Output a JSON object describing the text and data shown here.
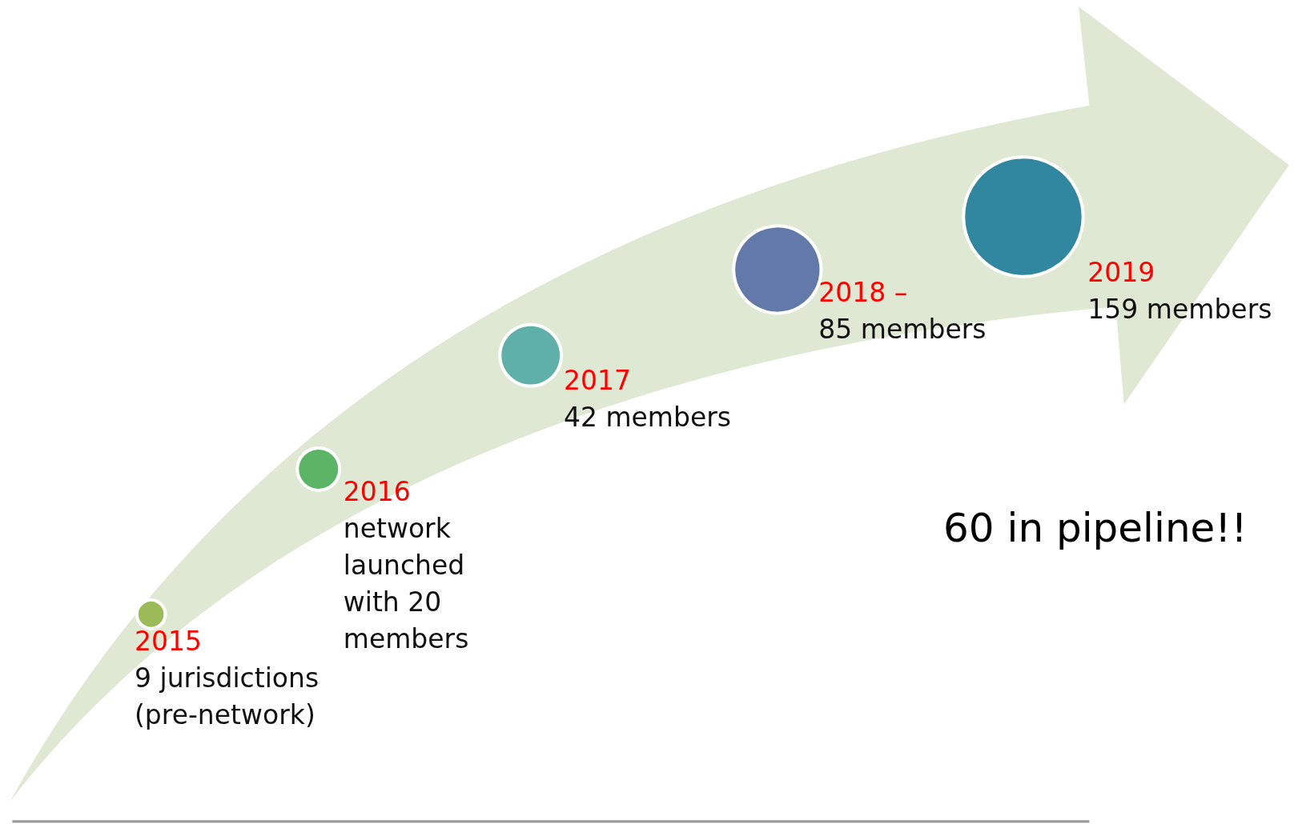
{
  "chart_data": {
    "type": "other",
    "categories": [
      "2015",
      "2016",
      "2017",
      "2018 –",
      "2019"
    ],
    "values": [
      9,
      20,
      42,
      85,
      159
    ],
    "value_labels": [
      "\n9 jurisdictions\n(pre-network)",
      "\nnetwork\nlaunched\nwith 20\nmembers",
      "\n42 members",
      "\n85 members",
      "\n159 members"
    ],
    "colors": [
      "#9bbb59",
      "#5cb567",
      "#5fb0a8",
      "#6279a9",
      "#31879f"
    ],
    "annotations": [
      "60 in pipeline!!"
    ]
  }
}
